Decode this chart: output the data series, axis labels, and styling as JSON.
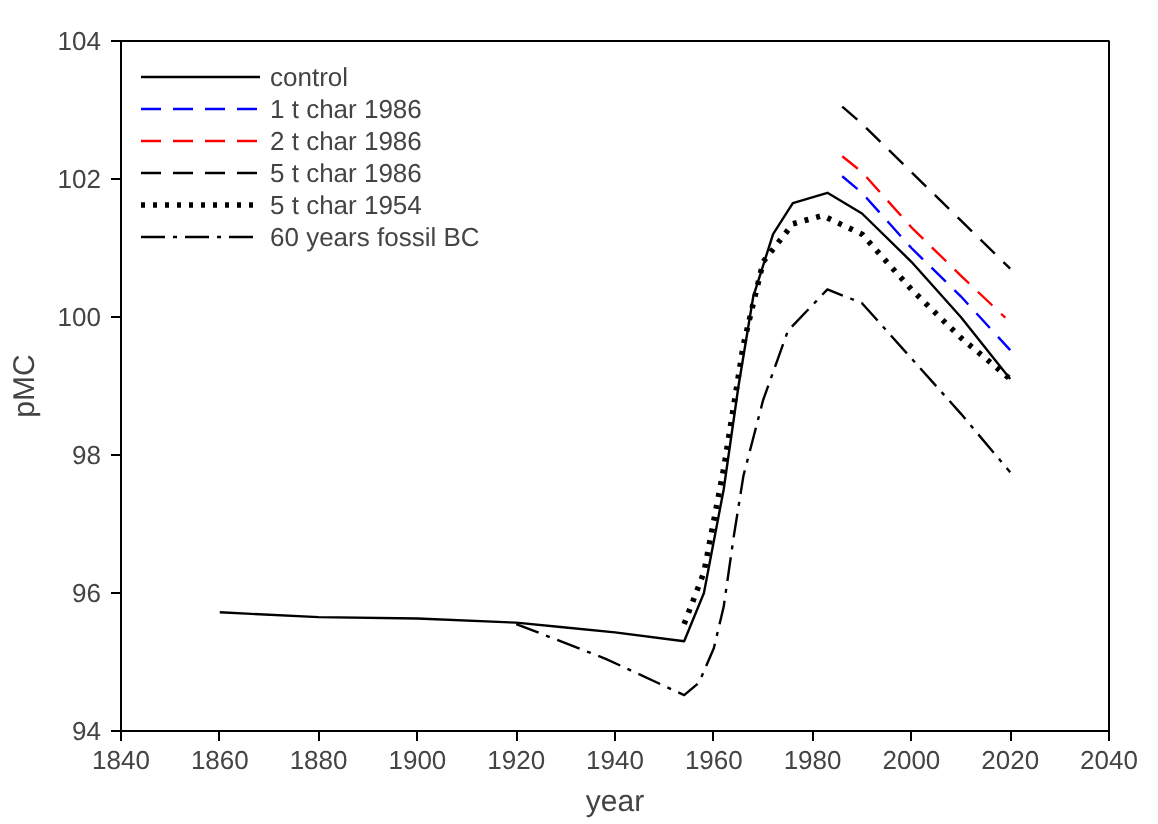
{
  "chart_data": {
    "type": "line",
    "xlabel": "year",
    "ylabel": "pMC",
    "xlim": [
      1840,
      2040
    ],
    "ylim": [
      94,
      104
    ],
    "xticks": [
      1840,
      1860,
      1880,
      1900,
      1920,
      1940,
      1960,
      1980,
      2000,
      2020,
      2040
    ],
    "yticks": [
      94,
      96,
      98,
      100,
      102,
      104
    ],
    "grid": false,
    "legend": "top left",
    "marker": "none",
    "series": [
      {
        "name": "control",
        "color": "#000000",
        "line_style": "solid",
        "x": [
          1860,
          1880,
          1900,
          1920,
          1930,
          1940,
          1954,
          1958,
          1962,
          1965,
          1968,
          1972,
          1976,
          1983,
          1990,
          2000,
          2010,
          2020
        ],
        "values": [
          95.72,
          95.65,
          95.63,
          95.57,
          95.5,
          95.43,
          95.3,
          96.0,
          97.5,
          99.0,
          100.3,
          101.2,
          101.65,
          101.8,
          101.5,
          100.8,
          100.0,
          99.1
        ]
      },
      {
        "name": "1 t char 1986",
        "color": "#0000ff",
        "line_style": "dashed",
        "x": [
          1986,
          1990,
          2000,
          2010,
          2020
        ],
        "values": [
          102.04,
          101.8,
          101.0,
          100.3,
          99.52
        ]
      },
      {
        "name": "2 t char 1986",
        "color": "#ff0000",
        "line_style": "dashed",
        "x": [
          1986,
          1990,
          2000,
          2010,
          2019
        ],
        "values": [
          102.33,
          102.1,
          101.3,
          100.6,
          99.99
        ]
      },
      {
        "name": "5 t char 1986",
        "color": "#000000",
        "line_style": "dashed",
        "x": [
          1986,
          1990,
          2000,
          2010,
          2020
        ],
        "values": [
          103.05,
          102.8,
          102.1,
          101.4,
          100.7
        ]
      },
      {
        "name": "5 t char 1954",
        "color": "#000000",
        "line_style": "dotted",
        "x": [
          1954,
          1958,
          1962,
          1966,
          1970,
          1976,
          1982,
          1990,
          2000,
          2010,
          2020
        ],
        "values": [
          95.55,
          96.3,
          97.8,
          99.6,
          100.8,
          101.35,
          101.47,
          101.2,
          100.4,
          99.7,
          99.1
        ]
      },
      {
        "name": "60 years fossil BC",
        "color": "#000000",
        "line_style": "dashdot",
        "x": [
          1920,
          1938,
          1954,
          1957,
          1960,
          1962,
          1964,
          1966,
          1970,
          1975,
          1983,
          1990,
          2000,
          2010,
          2020
        ],
        "values": [
          95.55,
          95.05,
          94.52,
          94.7,
          95.2,
          95.8,
          96.8,
          97.7,
          98.8,
          99.8,
          100.4,
          100.2,
          99.4,
          98.6,
          97.75
        ]
      }
    ]
  }
}
